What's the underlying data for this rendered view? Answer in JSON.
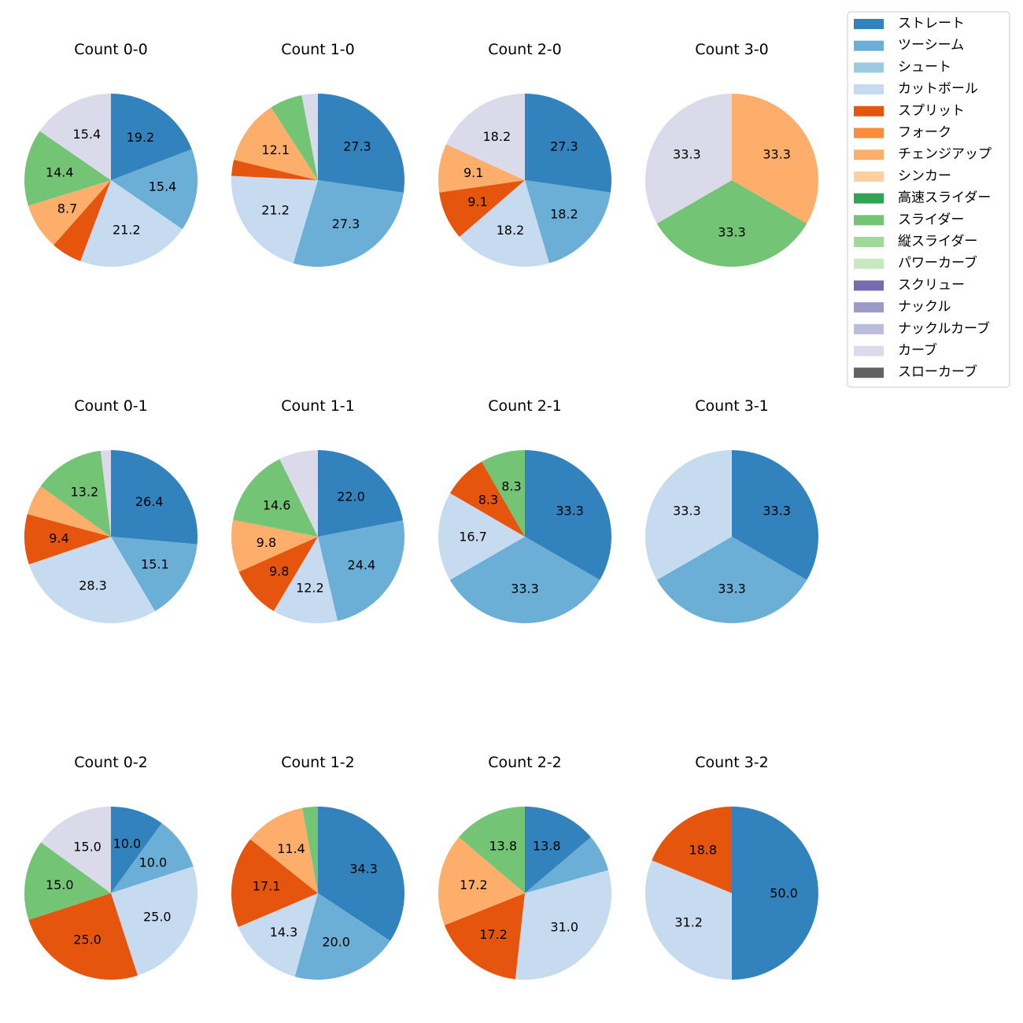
{
  "pitch_types": [
    {
      "name": "ストレート",
      "color": "#3182bd"
    },
    {
      "name": "ツーシーム",
      "color": "#6baed6"
    },
    {
      "name": "シュート",
      "color": "#9ecae1"
    },
    {
      "name": "カットボール",
      "color": "#c6dbef"
    },
    {
      "name": "スプリット",
      "color": "#e6550d"
    },
    {
      "name": "フォーク",
      "color": "#fd8d3c"
    },
    {
      "name": "チェンジアップ",
      "color": "#fdae6b"
    },
    {
      "name": "シンカー",
      "color": "#fdd0a2"
    },
    {
      "name": "高速スライダー",
      "color": "#31a354"
    },
    {
      "name": "スライダー",
      "color": "#74c476"
    },
    {
      "name": "縦スライダー",
      "color": "#a1d99b"
    },
    {
      "name": "パワーカーブ",
      "color": "#c7e9c0"
    },
    {
      "name": "スクリュー",
      "color": "#756bb1"
    },
    {
      "name": "ナックル",
      "color": "#9e9ac8"
    },
    {
      "name": "ナックルカーブ",
      "color": "#bcbddc"
    },
    {
      "name": "カーブ",
      "color": "#dadaeb"
    },
    {
      "name": "スローカーブ",
      "color": "#636363"
    }
  ],
  "chart_data": [
    {
      "type": "pie",
      "title": "Count 0-0",
      "slices": [
        {
          "type": "ストレート",
          "value": 19.2,
          "label": "19.2"
        },
        {
          "type": "ツーシーム",
          "value": 15.4,
          "label": "15.4"
        },
        {
          "type": "カットボール",
          "value": 21.2,
          "label": "21.2"
        },
        {
          "type": "スプリット",
          "value": 5.8,
          "label": ""
        },
        {
          "type": "チェンジアップ",
          "value": 8.7,
          "label": "8.7"
        },
        {
          "type": "スライダー",
          "value": 14.4,
          "label": "14.4"
        },
        {
          "type": "カーブ",
          "value": 15.4,
          "label": "15.4"
        }
      ]
    },
    {
      "type": "pie",
      "title": "Count 1-0",
      "slices": [
        {
          "type": "ストレート",
          "value": 27.3,
          "label": "27.3"
        },
        {
          "type": "ツーシーム",
          "value": 27.3,
          "label": "27.3"
        },
        {
          "type": "カットボール",
          "value": 21.2,
          "label": "21.2"
        },
        {
          "type": "スプリット",
          "value": 3.0,
          "label": ""
        },
        {
          "type": "チェンジアップ",
          "value": 12.1,
          "label": "12.1"
        },
        {
          "type": "スライダー",
          "value": 6.1,
          "label": ""
        },
        {
          "type": "カーブ",
          "value": 3.0,
          "label": ""
        }
      ]
    },
    {
      "type": "pie",
      "title": "Count 2-0",
      "slices": [
        {
          "type": "ストレート",
          "value": 27.3,
          "label": "27.3"
        },
        {
          "type": "ツーシーム",
          "value": 18.2,
          "label": "18.2"
        },
        {
          "type": "カットボール",
          "value": 18.2,
          "label": "18.2"
        },
        {
          "type": "スプリット",
          "value": 9.1,
          "label": "9.1"
        },
        {
          "type": "チェンジアップ",
          "value": 9.1,
          "label": "9.1"
        },
        {
          "type": "カーブ",
          "value": 18.2,
          "label": "18.2"
        }
      ]
    },
    {
      "type": "pie",
      "title": "Count 3-0",
      "slices": [
        {
          "type": "チェンジアップ",
          "value": 33.3,
          "label": "33.3"
        },
        {
          "type": "スライダー",
          "value": 33.3,
          "label": "33.3"
        },
        {
          "type": "カーブ",
          "value": 33.3,
          "label": "33.3"
        }
      ]
    },
    {
      "type": "pie",
      "title": "Count 0-1",
      "slices": [
        {
          "type": "ストレート",
          "value": 26.4,
          "label": "26.4"
        },
        {
          "type": "ツーシーム",
          "value": 15.1,
          "label": "15.1"
        },
        {
          "type": "カットボール",
          "value": 28.3,
          "label": "28.3"
        },
        {
          "type": "スプリット",
          "value": 9.4,
          "label": "9.4"
        },
        {
          "type": "チェンジアップ",
          "value": 5.7,
          "label": ""
        },
        {
          "type": "スライダー",
          "value": 13.2,
          "label": "13.2"
        },
        {
          "type": "カーブ",
          "value": 1.9,
          "label": ""
        }
      ]
    },
    {
      "type": "pie",
      "title": "Count 1-1",
      "slices": [
        {
          "type": "ストレート",
          "value": 22.0,
          "label": "22.0"
        },
        {
          "type": "ツーシーム",
          "value": 24.4,
          "label": "24.4"
        },
        {
          "type": "カットボール",
          "value": 12.2,
          "label": "12.2"
        },
        {
          "type": "スプリット",
          "value": 9.8,
          "label": "9.8"
        },
        {
          "type": "チェンジアップ",
          "value": 9.8,
          "label": "9.8"
        },
        {
          "type": "スライダー",
          "value": 14.6,
          "label": "14.6"
        },
        {
          "type": "カーブ",
          "value": 7.3,
          "label": ""
        }
      ]
    },
    {
      "type": "pie",
      "title": "Count 2-1",
      "slices": [
        {
          "type": "ストレート",
          "value": 33.3,
          "label": "33.3"
        },
        {
          "type": "ツーシーム",
          "value": 33.3,
          "label": "33.3"
        },
        {
          "type": "カットボール",
          "value": 16.7,
          "label": "16.7"
        },
        {
          "type": "スプリット",
          "value": 8.3,
          "label": "8.3"
        },
        {
          "type": "スライダー",
          "value": 8.3,
          "label": "8.3"
        }
      ]
    },
    {
      "type": "pie",
      "title": "Count 3-1",
      "slices": [
        {
          "type": "ストレート",
          "value": 33.3,
          "label": "33.3"
        },
        {
          "type": "ツーシーム",
          "value": 33.3,
          "label": "33.3"
        },
        {
          "type": "カットボール",
          "value": 33.3,
          "label": "33.3"
        }
      ]
    },
    {
      "type": "pie",
      "title": "Count 0-2",
      "slices": [
        {
          "type": "ストレート",
          "value": 10.0,
          "label": "10.0"
        },
        {
          "type": "ツーシーム",
          "value": 10.0,
          "label": "10.0"
        },
        {
          "type": "カットボール",
          "value": 25.0,
          "label": "25.0"
        },
        {
          "type": "スプリット",
          "value": 25.0,
          "label": "25.0"
        },
        {
          "type": "スライダー",
          "value": 15.0,
          "label": "15.0"
        },
        {
          "type": "カーブ",
          "value": 15.0,
          "label": "15.0"
        }
      ]
    },
    {
      "type": "pie",
      "title": "Count 1-2",
      "slices": [
        {
          "type": "ストレート",
          "value": 34.3,
          "label": "34.3"
        },
        {
          "type": "ツーシーム",
          "value": 20.0,
          "label": "20.0"
        },
        {
          "type": "カットボール",
          "value": 14.3,
          "label": "14.3"
        },
        {
          "type": "スプリット",
          "value": 17.1,
          "label": "17.1"
        },
        {
          "type": "チェンジアップ",
          "value": 11.4,
          "label": "11.4"
        },
        {
          "type": "スライダー",
          "value": 2.9,
          "label": ""
        }
      ]
    },
    {
      "type": "pie",
      "title": "Count 2-2",
      "slices": [
        {
          "type": "ストレート",
          "value": 13.8,
          "label": "13.8"
        },
        {
          "type": "ツーシーム",
          "value": 6.9,
          "label": ""
        },
        {
          "type": "カットボール",
          "value": 31.0,
          "label": "31.0"
        },
        {
          "type": "スプリット",
          "value": 17.2,
          "label": "17.2"
        },
        {
          "type": "チェンジアップ",
          "value": 17.2,
          "label": "17.2"
        },
        {
          "type": "スライダー",
          "value": 13.8,
          "label": "13.8"
        }
      ]
    },
    {
      "type": "pie",
      "title": "Count 3-2",
      "slices": [
        {
          "type": "ストレート",
          "value": 50.0,
          "label": "50.0"
        },
        {
          "type": "カットボール",
          "value": 31.2,
          "label": "31.2"
        },
        {
          "type": "スプリット",
          "value": 18.8,
          "label": "18.8"
        }
      ]
    }
  ]
}
